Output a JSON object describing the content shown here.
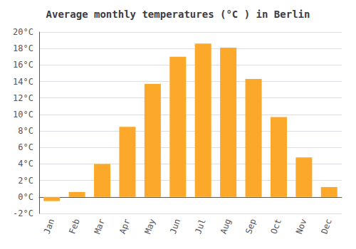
{
  "chart_data": {
    "type": "bar",
    "title": "Average monthly temperatures (°C ) in Berlin",
    "categories": [
      "Jan",
      "Feb",
      "Mar",
      "Apr",
      "May",
      "Jun",
      "Jul",
      "Aug",
      "Sep",
      "Oct",
      "Nov",
      "Dec"
    ],
    "values": [
      -0.5,
      0.6,
      4.0,
      8.5,
      13.7,
      17.0,
      18.6,
      18.1,
      14.3,
      9.7,
      4.8,
      1.2
    ],
    "color": "#FCA82A",
    "ylim": [
      -2,
      20
    ],
    "yticks": [
      {
        "value": -2,
        "label": "-2°C"
      },
      {
        "value": 0,
        "label": "0°C"
      },
      {
        "value": 2,
        "label": "2°C"
      },
      {
        "value": 4,
        "label": "4°C"
      },
      {
        "value": 6,
        "label": "6°C"
      },
      {
        "value": 8,
        "label": "8°C"
      },
      {
        "value": 10,
        "label": "10°C"
      },
      {
        "value": 12,
        "label": "12°C"
      },
      {
        "value": 14,
        "label": "14°C"
      },
      {
        "value": 16,
        "label": "16°C"
      },
      {
        "value": 18,
        "label": "18°C"
      },
      {
        "value": 20,
        "label": "20°C"
      }
    ],
    "grid": true
  }
}
